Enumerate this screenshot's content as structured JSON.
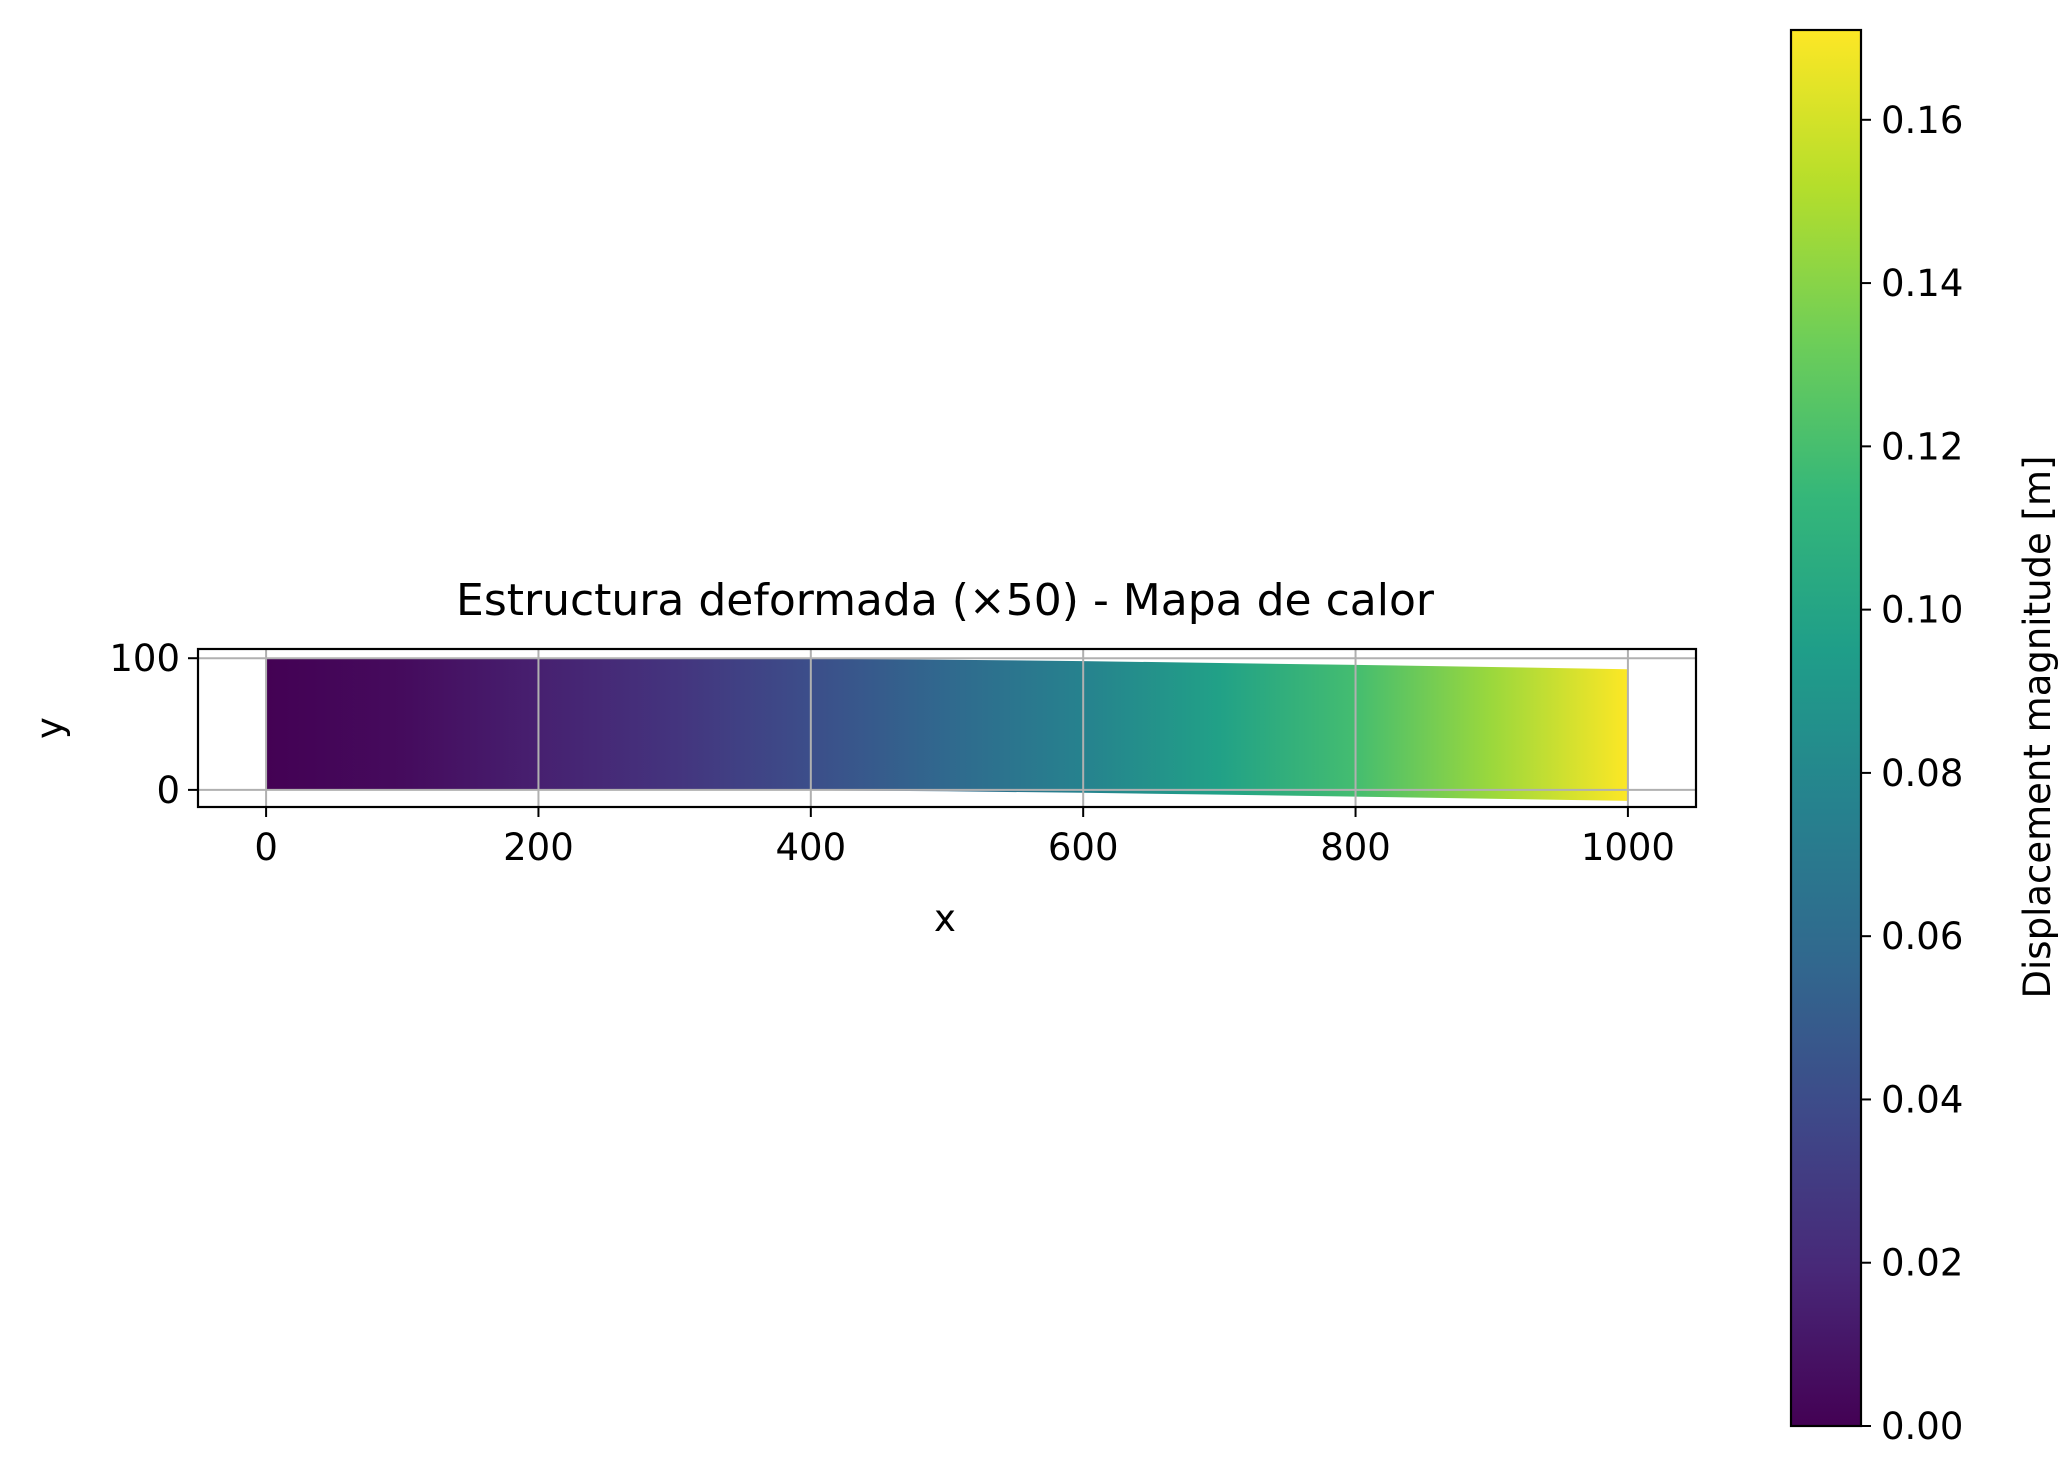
{
  "chart_data": {
    "type": "heatmap",
    "title": "Estructura deformada (×50) - Mapa de calor",
    "xlabel": "x",
    "ylabel": "y",
    "xlim": [
      -50,
      1050
    ],
    "ylim": [
      -13,
      107
    ],
    "xticks": [
      0,
      200,
      400,
      600,
      800,
      1000
    ],
    "xtick_labels": [
      "0",
      "200",
      "400",
      "600",
      "800",
      "1000"
    ],
    "yticks": [
      0,
      100
    ],
    "ytick_labels": [
      "0",
      "100"
    ],
    "grid": true,
    "deformed_shape": {
      "x": [
        0,
        100,
        200,
        300,
        400,
        500,
        600,
        700,
        800,
        900,
        1000
      ],
      "y_top": [
        100,
        100,
        100,
        99.9,
        99.6,
        98.9,
        97.8,
        96.4,
        94.9,
        93.3,
        91.6
      ],
      "y_bottom": [
        0,
        0,
        0,
        -0.1,
        -0.4,
        -1.1,
        -2.2,
        -3.6,
        -5.1,
        -6.7,
        -8.4
      ],
      "displacement": [
        0.0,
        0.005,
        0.015,
        0.026,
        0.041,
        0.058,
        0.076,
        0.097,
        0.119,
        0.145,
        0.171
      ]
    },
    "colorbar": {
      "label": "Displacement magnitude [m]",
      "colormap": "viridis",
      "min": 0.0,
      "max": 0.171,
      "ticks": [
        0.0,
        0.02,
        0.04,
        0.06,
        0.08,
        0.1,
        0.12,
        0.14,
        0.16
      ],
      "tick_labels": [
        "0.00",
        "0.02",
        "0.04",
        "0.06",
        "0.08",
        "0.10",
        "0.12",
        "0.14",
        "0.16"
      ]
    }
  }
}
